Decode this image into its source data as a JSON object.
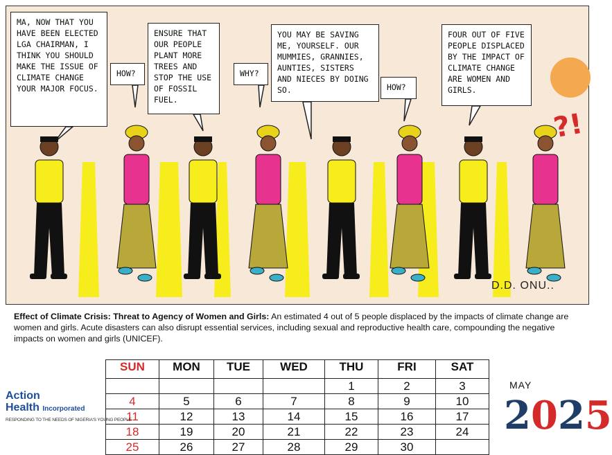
{
  "comic": {
    "bubbles": [
      "MA, NOW THAT YOU HAVE BEEN ELECTED LGA CHAIRMAN, I THINK YOU SHOULD MAKE THE ISSUE OF CLIMATE CHANGE YOUR MAJOR FOCUS.",
      "HOW?",
      "ENSURE THAT OUR PEOPLE PLANT MORE TREES AND STOP THE USE OF FOSSIL FUEL.",
      "WHY?",
      "YOU MAY BE SAVING ME, YOURSELF. OUR MUMMIES, GRANNIES, AUNTIES, SISTERS AND NIECES BY DOING SO.",
      "HOW?",
      "FOUR OUT OF FIVE PEOPLE DISPLACED BY THE IMPACT OF CLIMATE CHANGE ARE WOMEN AND GIRLS."
    ],
    "exclaim": "?!",
    "signature": "D.D. ONU.."
  },
  "caption": {
    "heading": "Effect of Climate Crisis: Threat to Agency of Women and Girls:",
    "body": " An estimated 4 out of 5 people displaced by the impacts of climate change are women and girls. Acute disasters can also disrupt essential services, including sexual and reproductive health care, compounding the negative impacts on women and girls (UNICEF)."
  },
  "calendar": {
    "days": [
      "SUN",
      "MON",
      "TUE",
      "WED",
      "THU",
      "FRI",
      "SAT"
    ],
    "weeks": [
      [
        "",
        "",
        "",
        "",
        "1",
        "2",
        "3"
      ],
      [
        "4",
        "5",
        "6",
        "7",
        "8",
        "9",
        "10"
      ],
      [
        "11",
        "12",
        "13",
        "14",
        "15",
        "16",
        "17"
      ],
      [
        "18",
        "19",
        "20",
        "21",
        "22",
        "23",
        "24"
      ],
      [
        "25",
        "26",
        "27",
        "28",
        "29",
        "30",
        ""
      ]
    ]
  },
  "logo": {
    "line1": "Action",
    "line2a": "Health",
    "line2b": "Incorporated",
    "tagline": "RESPONDING TO THE NEEDS OF NIGERIA'S YOUNG PEOPLE"
  },
  "month": "MAY",
  "year_digits": [
    "2",
    "0",
    "2",
    "5"
  ],
  "colors": {
    "sun_red": "#d42a2a",
    "navy": "#1f3d66",
    "shirt_pink": "#e8328f",
    "shirt_yellow": "#f7ec1c",
    "sun_orange": "#f4a950"
  }
}
